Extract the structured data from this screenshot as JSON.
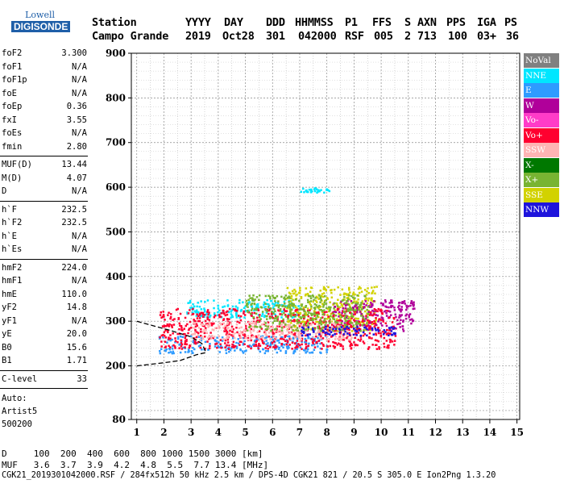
{
  "logo": {
    "line1": "Lowell",
    "line2": "DIGISONDE"
  },
  "header": {
    "labels": [
      "Station",
      "YYYY",
      "DAY",
      "DDD",
      "HHMMSS",
      "P1",
      "FFS",
      "S",
      "AXN",
      "PPS",
      "IGA",
      "PS"
    ],
    "values": [
      "Campo Grande",
      "2019",
      "Oct28",
      "301",
      "042000",
      "RSF",
      "005",
      "2",
      "713",
      "100",
      "03+",
      "36"
    ]
  },
  "params_group1": [
    {
      "name": "foF2",
      "value": "3.300"
    },
    {
      "name": "foF1",
      "value": "N/A"
    },
    {
      "name": "foF1p",
      "value": "N/A"
    },
    {
      "name": "foE",
      "value": "N/A"
    },
    {
      "name": "foEp",
      "value": "0.36"
    },
    {
      "name": "fxI",
      "value": "3.55"
    },
    {
      "name": "foEs",
      "value": "N/A"
    },
    {
      "name": "fmin",
      "value": "2.80"
    }
  ],
  "params_group2": [
    {
      "name": "MUF(D)",
      "value": "13.44"
    },
    {
      "name": "M(D)",
      "value": "4.07"
    },
    {
      "name": "D",
      "value": "N/A"
    }
  ],
  "params_group3": [
    {
      "name": "h`F",
      "value": "232.5"
    },
    {
      "name": "h`F2",
      "value": "232.5"
    },
    {
      "name": "h`E",
      "value": "N/A"
    },
    {
      "name": "h`Es",
      "value": "N/A"
    }
  ],
  "params_group4": [
    {
      "name": "hmF2",
      "value": "224.0"
    },
    {
      "name": "hmF1",
      "value": "N/A"
    },
    {
      "name": "hmE",
      "value": "110.0"
    },
    {
      "name": "yF2",
      "value": "14.8"
    },
    {
      "name": "yF1",
      "value": "N/A"
    },
    {
      "name": "yE",
      "value": "20.0"
    },
    {
      "name": "B0",
      "value": "15.6"
    },
    {
      "name": "B1",
      "value": "1.71"
    }
  ],
  "params_group5": [
    {
      "name": "C-level",
      "value": "33"
    }
  ],
  "auto": {
    "line1": "Auto:",
    "line2": "Artist5",
    "line3": "500200"
  },
  "legend": [
    {
      "label": "NoVal",
      "color": "#808080"
    },
    {
      "label": "NNE",
      "color": "#00e6ff"
    },
    {
      "label": "E",
      "color": "#2e9bff"
    },
    {
      "label": "W",
      "color": "#b0009a"
    },
    {
      "label": "Vo-",
      "color": "#ff3cc8"
    },
    {
      "label": "Vo+",
      "color": "#ff0030"
    },
    {
      "label": "SSW",
      "color": "#ffb4b4"
    },
    {
      "label": "X-",
      "color": "#007800"
    },
    {
      "label": "X+",
      "color": "#78b432"
    },
    {
      "label": "SSE",
      "color": "#d2d200"
    },
    {
      "label": "NNW",
      "color": "#1e14dc"
    }
  ],
  "footer": {
    "d_row": "D     100  200  400  600  800 1000 1500 3000 [km]",
    "muf_row": "MUF   3.6  3.7  3.9  4.2  4.8  5.5  7.7 13.4 [MHz]",
    "info_row": "CGK21_2019301042000.RSF / 284fx512h 50 kHz 2.5 km / DPS-4D CGK21 821 / 20.5 S 305.0 E Ion2Png 1.3.20"
  },
  "chart_data": {
    "type": "scatter",
    "title": "",
    "xlabel": "",
    "ylabel": "",
    "xlim": [
      0.8,
      15.1
    ],
    "ylim": [
      80,
      900
    ],
    "xticks": [
      1,
      2,
      3,
      4,
      5,
      6,
      7,
      8,
      9,
      10,
      11,
      12,
      13,
      14,
      15
    ],
    "yticks": [
      80,
      200,
      300,
      400,
      500,
      600,
      700,
      800,
      900
    ],
    "grid": true,
    "legend_position": "right",
    "clusters": [
      {
        "series": "E",
        "x_range": [
          1.8,
          8.0
        ],
        "y_range": [
          230,
          270
        ]
      },
      {
        "series": "NNE",
        "x_range": [
          2.8,
          7.0
        ],
        "y_range": [
          310,
          350
        ]
      },
      {
        "series": "SSE",
        "x_range": [
          6.5,
          9.8
        ],
        "y_range": [
          280,
          380
        ]
      },
      {
        "series": "W",
        "x_range": [
          8.2,
          11.2
        ],
        "y_range": [
          280,
          350
        ]
      },
      {
        "series": "Vo+",
        "x_range": [
          1.8,
          10.5
        ],
        "y_range": [
          240,
          330
        ]
      },
      {
        "series": "SSW",
        "x_range": [
          3.0,
          9.0
        ],
        "y_range": [
          260,
          300
        ]
      },
      {
        "series": "X+",
        "x_range": [
          5.0,
          9.5
        ],
        "y_range": [
          280,
          360
        ]
      },
      {
        "series": "NNW",
        "x_range": [
          7.0,
          10.5
        ],
        "y_range": [
          270,
          290
        ]
      },
      {
        "series": "NNE",
        "x_range": [
          7.0,
          8.1
        ],
        "y_range": [
          590,
          600
        ]
      }
    ],
    "trace": [
      {
        "x": 1.0,
        "y": 200
      },
      {
        "x": 2.0,
        "y": 207
      },
      {
        "x": 2.6,
        "y": 212
      },
      {
        "x": 3.2,
        "y": 225
      },
      {
        "x": 3.55,
        "y": 230
      },
      {
        "x": 3.4,
        "y": 250
      },
      {
        "x": 3.0,
        "y": 265
      },
      {
        "x": 2.2,
        "y": 280
      },
      {
        "x": 1.0,
        "y": 300
      }
    ]
  }
}
